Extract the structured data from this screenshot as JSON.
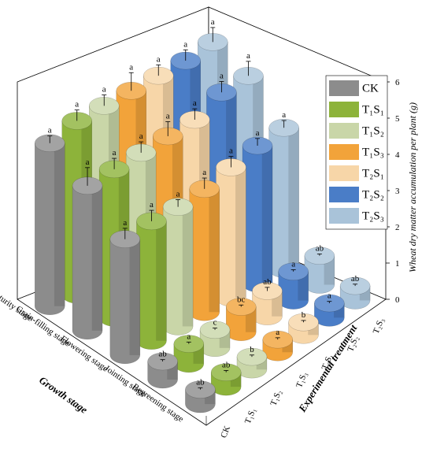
{
  "chart_data": {
    "type": "bar3d",
    "zlabel": "Wheat dry matter accumulation per plant (g)",
    "xlabel": "Experimental treatment",
    "ylabel": "Growth stage",
    "categories": [
      "Regreening stage",
      "Jointing stage",
      "Flowering stage",
      "Grain-filling stage",
      "Maturity stage"
    ],
    "zlim": [
      0,
      6
    ],
    "zticks": [
      0,
      1,
      2,
      3,
      4,
      5,
      6
    ],
    "series": [
      {
        "name": "CK",
        "color": "#8c8c8c",
        "values": [
          0.4,
          0.5,
          3.2,
          4.0,
          4.5
        ],
        "errors": [
          0.05,
          0.05,
          0.3,
          0.5,
          0.2
        ],
        "letters": [
          "ab",
          "ab",
          "a",
          "a",
          "a"
        ]
      },
      {
        "name": "T₁S₁",
        "color": "#8db33a",
        "values": [
          0.4,
          0.55,
          3.3,
          4.1,
          4.8
        ],
        "errors": [
          0.05,
          0.05,
          0.3,
          0.3,
          0.3
        ],
        "letters": [
          "ab",
          "a",
          "a",
          "a",
          "a"
        ]
      },
      {
        "name": "T₁S₂",
        "color": "#c9d6a8",
        "values": [
          0.35,
          0.5,
          3.3,
          4.2,
          4.9
        ],
        "errors": [
          0.05,
          0.05,
          0.2,
          0.3,
          0.3
        ],
        "letters": [
          "b",
          "c",
          "a",
          "a",
          "a"
        ]
      },
      {
        "name": "T₁S₃",
        "color": "#f2a33a",
        "values": [
          0.35,
          0.7,
          3.4,
          4.3,
          5.0
        ],
        "errors": [
          0.05,
          0.05,
          0.3,
          0.4,
          0.5
        ],
        "letters": [
          "a",
          "bc",
          "a",
          "a",
          "a"
        ]
      },
      {
        "name": "T₂S₁",
        "color": "#f7d6a8",
        "values": [
          0.35,
          0.7,
          3.6,
          4.4,
          5.1
        ],
        "errors": [
          0.05,
          0.1,
          0.3,
          0.3,
          0.3
        ],
        "letters": [
          "b",
          "ab",
          "a",
          "a",
          "a"
        ]
      },
      {
        "name": "T₂S₂",
        "color": "#4a7dc7",
        "values": [
          0.4,
          0.8,
          3.8,
          4.8,
          5.2
        ],
        "errors": [
          0.05,
          0.05,
          0.2,
          0.3,
          0.3
        ],
        "letters": [
          "a",
          "a",
          "a",
          "a",
          "a"
        ]
      },
      {
        "name": "T₂S₃",
        "color": "#a9c3d9",
        "values": [
          0.4,
          0.8,
          3.9,
          4.9,
          5.4
        ],
        "errors": [
          0.05,
          0.05,
          0.2,
          0.4,
          0.4
        ],
        "letters": [
          "ab",
          "ab",
          "a",
          "a",
          "a"
        ]
      }
    ]
  }
}
